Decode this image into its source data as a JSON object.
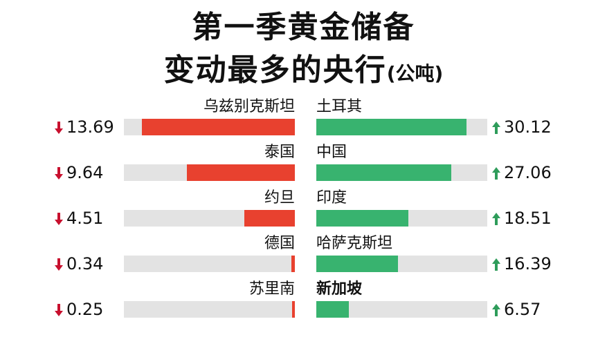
{
  "title": {
    "line1": "第一季黄金储备",
    "line2": "变动最多的央行",
    "unit": "(公吨)"
  },
  "colors": {
    "decrease": "#e8412f",
    "increase": "#38b36f",
    "track": "#e3e3e3",
    "down_arrow": "#c8102e",
    "up_arrow": "#2e9c5a"
  },
  "icons": {
    "decrease": "down-arrow-icon",
    "increase": "up-arrow-icon"
  },
  "chart_data": [
    {
      "type": "bar",
      "direction": "decrease",
      "categories": [
        "乌兹别克斯坦",
        "泰国",
        "约旦",
        "德国",
        "苏里南"
      ],
      "values": [
        13.69,
        9.64,
        4.51,
        0.34,
        0.25
      ],
      "labels": [
        "13.69",
        "9.64",
        "4.51",
        "0.34",
        "0.25"
      ],
      "xlim": [
        0,
        15.3
      ]
    },
    {
      "type": "bar",
      "direction": "increase",
      "categories": [
        "土耳其",
        "中国",
        "印度",
        "哈萨克斯坦",
        "新加坡"
      ],
      "values": [
        30.12,
        27.06,
        18.51,
        16.39,
        6.57
      ],
      "labels": [
        "30.12",
        "27.06",
        "18.51",
        "16.39",
        "6.57"
      ],
      "xlim": [
        0,
        34.3
      ]
    }
  ]
}
